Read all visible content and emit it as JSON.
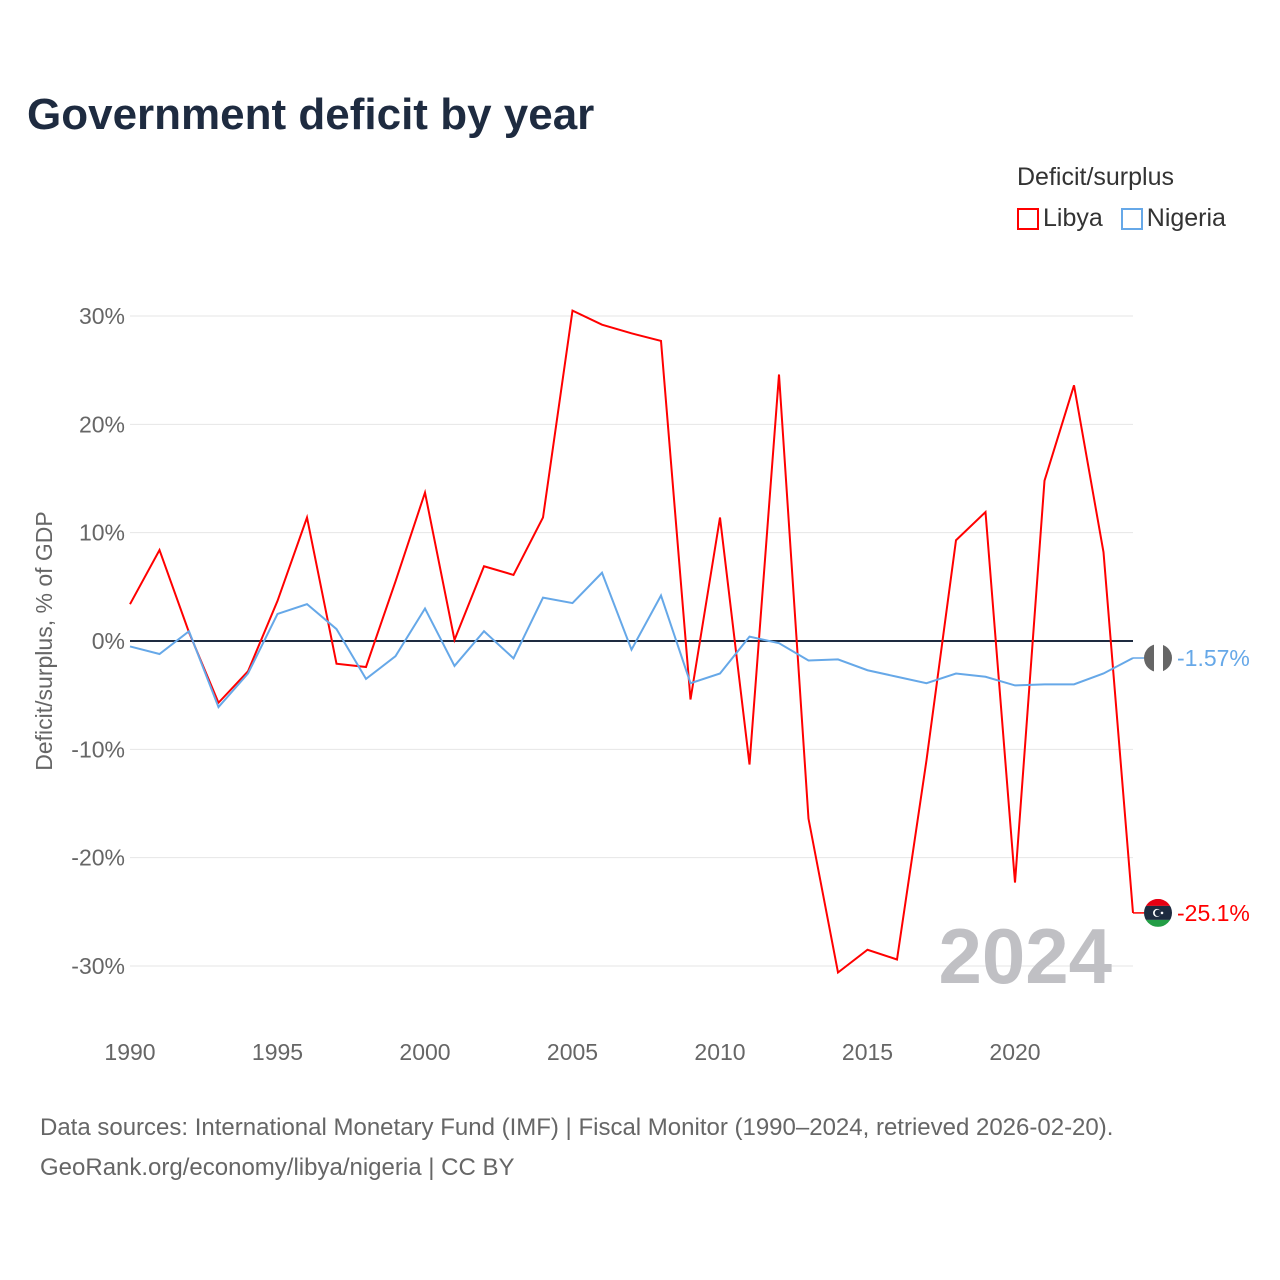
{
  "title": "Government deficit by year",
  "legend": {
    "title": "Deficit/surplus",
    "items": [
      {
        "name": "Libya",
        "color": "#ff0000"
      },
      {
        "name": "Nigeria",
        "color": "#66a8e8"
      }
    ]
  },
  "source": {
    "line1": "Data sources: International Monetary Fund (IMF) | Fiscal Monitor (1990–2024, retrieved 2026-02-20).",
    "line2": "GeoRank.org/economy/libya/nigeria | CC BY"
  },
  "chart_data": {
    "type": "line",
    "title": "Government deficit by year",
    "xlabel": "",
    "ylabel": "Deficit/surplus, % of GDP",
    "xlim": [
      1990,
      2024
    ],
    "ylim": [
      -35,
      33
    ],
    "yticks": [
      30,
      20,
      10,
      0,
      -10,
      -20,
      -30
    ],
    "ytick_labels": [
      "30%",
      "20%",
      "10%",
      "0%",
      "-10%",
      "-20%",
      "-30%"
    ],
    "xticks": [
      1990,
      1995,
      2000,
      2005,
      2010,
      2015,
      2020
    ],
    "xtick_labels": [
      "1990",
      "1995",
      "2000",
      "2005",
      "2010",
      "2015",
      "2020"
    ],
    "watermark_year": "2024",
    "x": [
      1990,
      1991,
      1992,
      1993,
      1994,
      1995,
      1996,
      1997,
      1998,
      1999,
      2000,
      2001,
      2002,
      2003,
      2004,
      2005,
      2006,
      2007,
      2008,
      2009,
      2010,
      2011,
      2012,
      2013,
      2014,
      2015,
      2016,
      2017,
      2018,
      2019,
      2020,
      2021,
      2022,
      2023,
      2024
    ],
    "series": [
      {
        "name": "Libya",
        "color": "#ff0000",
        "end_label": "-25.1%",
        "values": [
          3.4,
          8.4,
          0.8,
          -5.7,
          -2.8,
          3.7,
          11.4,
          -2.1,
          -2.4,
          5.5,
          13.7,
          0.1,
          6.9,
          6.1,
          11.4,
          30.5,
          29.2,
          28.4,
          27.7,
          -5.4,
          11.4,
          -11.4,
          24.6,
          -16.4,
          -30.6,
          -28.5,
          -29.4,
          -11.0,
          9.3,
          11.9,
          -22.3,
          14.8,
          23.6,
          8.2,
          -25.1
        ]
      },
      {
        "name": "Nigeria",
        "color": "#66a8e8",
        "end_label": "-1.57%",
        "values": [
          -0.5,
          -1.2,
          0.9,
          -6.1,
          -3.0,
          2.5,
          3.4,
          1.1,
          -3.5,
          -1.4,
          3.0,
          -2.3,
          0.9,
          -1.6,
          4.0,
          3.5,
          6.3,
          -0.8,
          4.2,
          -3.9,
          -3.0,
          0.4,
          -0.2,
          -1.8,
          -1.7,
          -2.7,
          -3.3,
          -3.9,
          -3.0,
          -3.3,
          -4.1,
          -4.0,
          -4.0,
          -3.0,
          -1.57
        ]
      }
    ]
  }
}
